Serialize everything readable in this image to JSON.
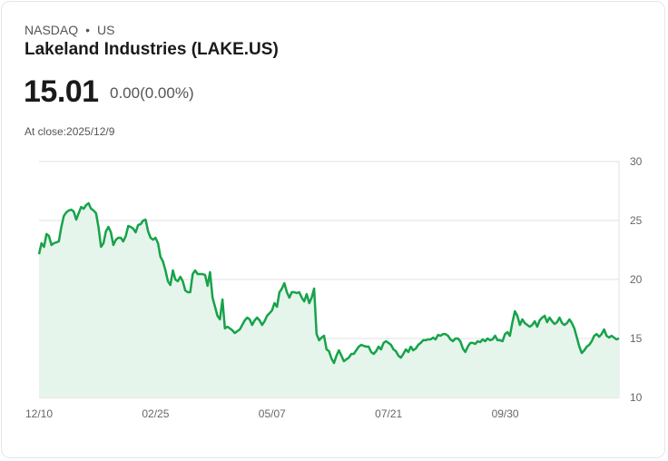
{
  "header": {
    "exchange": "NASDAQ",
    "separator": "•",
    "region": "US",
    "title": "Lakeland Industries (LAKE.US)",
    "price": "15.01",
    "change": "0.00(0.00%)",
    "close_label": "At close:2025/12/9"
  },
  "colors": {
    "line": "#16a34a",
    "fill": "#e6f5eb",
    "grid": "#e2e2e2"
  },
  "chart_data": {
    "type": "area",
    "title": "Lakeland Industries (LAKE.US)",
    "xlabel": "",
    "ylabel": "",
    "ylim": [
      10,
      30
    ],
    "yticks": [
      "30",
      "25",
      "20",
      "15",
      "10"
    ],
    "ytick_values": [
      30,
      25,
      20,
      15,
      10
    ],
    "xtick_labels": [
      "12/10",
      "02/25",
      "05/07",
      "07/21",
      "09/30"
    ],
    "grid": true,
    "legend": "none",
    "values": [
      22.15,
      23.08,
      22.77,
      23.85,
      23.69,
      22.92,
      23.08,
      23.15,
      23.23,
      24.46,
      25.38,
      25.69,
      25.85,
      25.92,
      25.77,
      25.08,
      25.62,
      26.15,
      26.0,
      26.31,
      26.46,
      26.0,
      25.85,
      25.62,
      24.46,
      22.77,
      23.08,
      24.08,
      24.46,
      24.0,
      22.92,
      23.38,
      23.54,
      23.54,
      23.23,
      23.69,
      24.54,
      24.46,
      24.31,
      24.0,
      24.62,
      24.69,
      25.0,
      25.08,
      24.08,
      23.54,
      23.38,
      23.54,
      23.08,
      21.92,
      21.54,
      20.77,
      19.85,
      19.54,
      20.77,
      20.0,
      19.85,
      20.23,
      19.85,
      19.08,
      18.92,
      18.92,
      20.46,
      20.77,
      20.46,
      20.46,
      20.46,
      20.38,
      19.46,
      20.62,
      18.46,
      17.69,
      16.92,
      16.62,
      18.31,
      15.85,
      16.0,
      15.85,
      15.69,
      15.46,
      15.62,
      15.77,
      16.15,
      16.54,
      16.77,
      16.62,
      16.15,
      16.54,
      16.77,
      16.54,
      16.15,
      16.46,
      16.92,
      17.15,
      17.38,
      18.0,
      17.69,
      18.92,
      19.23,
      19.69,
      18.92,
      18.46,
      18.92,
      18.92,
      18.85,
      18.92,
      18.46,
      18.15,
      18.77,
      18.0,
      18.46,
      19.23,
      15.38,
      14.85,
      15.08,
      15.23,
      14.08,
      13.92,
      13.31,
      12.92,
      13.54,
      14.0,
      13.54,
      13.08,
      13.23,
      13.38,
      13.69,
      13.69,
      14.0,
      14.31,
      14.46,
      14.38,
      14.31,
      14.31,
      13.85,
      13.69,
      13.92,
      14.31,
      14.08,
      14.62,
      14.77,
      14.62,
      14.46,
      14.08,
      13.92,
      13.54,
      13.38,
      13.69,
      14.08,
      13.85,
      14.31,
      14.0,
      14.15,
      14.46,
      14.62,
      14.85,
      14.85,
      14.92,
      14.92,
      15.08,
      14.92,
      15.31,
      15.23,
      15.38,
      15.38,
      15.23,
      14.92,
      14.77,
      15.0,
      15.0,
      14.77,
      14.15,
      13.85,
      14.31,
      14.62,
      14.62,
      14.54,
      14.77,
      14.69,
      14.92,
      14.77,
      15.0,
      14.85,
      14.92,
      15.23,
      14.85,
      14.85,
      14.77,
      15.38,
      15.54,
      15.23,
      16.38,
      17.31,
      16.92,
      16.15,
      16.62,
      16.31,
      16.15,
      16.0,
      16.15,
      16.46,
      16.0,
      16.54,
      16.77,
      16.92,
      16.38,
      16.77,
      16.46,
      16.23,
      16.38,
      16.77,
      16.31,
      16.15,
      16.31,
      16.62,
      16.31,
      15.85,
      15.08,
      14.31,
      13.77,
      14.0,
      14.31,
      14.46,
      14.77,
      15.23,
      15.38,
      15.15,
      15.38,
      15.77,
      15.23,
      15.08,
      15.23,
      15.08,
      14.92,
      15.01
    ]
  }
}
